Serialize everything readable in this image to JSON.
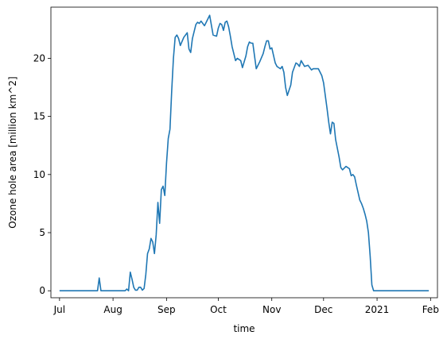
{
  "chart_data": {
    "type": "line",
    "xlabel": "time",
    "ylabel": "Ozone hole area [million km^2]",
    "x_range": [
      "2020-06-26",
      "2021-02-05"
    ],
    "ylim": [
      -0.6,
      24.4
    ],
    "grid": false,
    "color": "#1f77b4",
    "x_ticks": [
      {
        "date": "2020-07-01",
        "label": "Jul"
      },
      {
        "date": "2020-08-01",
        "label": "Aug"
      },
      {
        "date": "2020-09-01",
        "label": "Sep"
      },
      {
        "date": "2020-10-01",
        "label": "Oct"
      },
      {
        "date": "2020-11-01",
        "label": "Nov"
      },
      {
        "date": "2020-12-01",
        "label": "Dec"
      },
      {
        "date": "2021-01-01",
        "label": "2021"
      },
      {
        "date": "2021-02-01",
        "label": "Feb"
      }
    ],
    "y_ticks": [
      0,
      5,
      10,
      15,
      20
    ],
    "series": [
      {
        "x": [
          "2020-07-01",
          "2020-07-10",
          "2020-07-20",
          "2020-07-23",
          "2020-07-24",
          "2020-07-25",
          "2020-08-01",
          "2020-08-08",
          "2020-08-09",
          "2020-08-10",
          "2020-08-11",
          "2020-08-12",
          "2020-08-13",
          "2020-08-14",
          "2020-08-15",
          "2020-08-16",
          "2020-08-17",
          "2020-08-18",
          "2020-08-19",
          "2020-08-20",
          "2020-08-21",
          "2020-08-22",
          "2020-08-23",
          "2020-08-24",
          "2020-08-25",
          "2020-08-26",
          "2020-08-27",
          "2020-08-28",
          "2020-08-29",
          "2020-08-30",
          "2020-08-31",
          "2020-09-01",
          "2020-09-02",
          "2020-09-03",
          "2020-09-04",
          "2020-09-05",
          "2020-09-06",
          "2020-09-07",
          "2020-09-08",
          "2020-09-09",
          "2020-09-11",
          "2020-09-13",
          "2020-09-14",
          "2020-09-15",
          "2020-09-16",
          "2020-09-18",
          "2020-09-19",
          "2020-09-20",
          "2020-09-21",
          "2020-09-23",
          "2020-09-25",
          "2020-09-26",
          "2020-09-28",
          "2020-09-30",
          "2020-10-01",
          "2020-10-02",
          "2020-10-03",
          "2020-10-04",
          "2020-10-05",
          "2020-10-06",
          "2020-10-07",
          "2020-10-08",
          "2020-10-09",
          "2020-10-11",
          "2020-10-12",
          "2020-10-14",
          "2020-10-15",
          "2020-10-17",
          "2020-10-18",
          "2020-10-19",
          "2020-10-20",
          "2020-10-21",
          "2020-10-23",
          "2020-10-25",
          "2020-10-27",
          "2020-10-28",
          "2020-10-29",
          "2020-10-30",
          "2020-10-31",
          "2020-11-01",
          "2020-11-03",
          "2020-11-04",
          "2020-11-05",
          "2020-11-06",
          "2020-11-07",
          "2020-11-08",
          "2020-11-09",
          "2020-11-10",
          "2020-11-12",
          "2020-11-13",
          "2020-11-15",
          "2020-11-16",
          "2020-11-17",
          "2020-11-18",
          "2020-11-20",
          "2020-11-22",
          "2020-11-24",
          "2020-11-25",
          "2020-11-28",
          "2020-11-30",
          "2020-12-01",
          "2020-12-03",
          "2020-12-04",
          "2020-12-05",
          "2020-12-06",
          "2020-12-07",
          "2020-12-08",
          "2020-12-10",
          "2020-12-11",
          "2020-12-12",
          "2020-12-14",
          "2020-12-15",
          "2020-12-16",
          "2020-12-17",
          "2020-12-18",
          "2020-12-19",
          "2020-12-20",
          "2020-12-22",
          "2020-12-23",
          "2020-12-24",
          "2020-12-25",
          "2020-12-26",
          "2020-12-27",
          "2020-12-28",
          "2020-12-29",
          "2020-12-30",
          "2021-01-01",
          "2021-01-15",
          "2021-01-31"
        ],
        "y": [
          0,
          0,
          0,
          0,
          1.1,
          0,
          0,
          0,
          0.15,
          0,
          1.6,
          1.0,
          0.3,
          0.05,
          0.05,
          0.3,
          0.3,
          0.05,
          0.2,
          1.4,
          3.2,
          3.6,
          4.5,
          4.2,
          3.2,
          4.8,
          7.6,
          5.8,
          8.7,
          9.0,
          8.2,
          11.0,
          13.1,
          13.9,
          17.2,
          20.0,
          21.8,
          22.0,
          21.7,
          21.1,
          21.8,
          22.2,
          20.8,
          20.5,
          21.7,
          22.9,
          23.1,
          23.0,
          23.2,
          22.8,
          23.4,
          23.7,
          22.0,
          21.9,
          22.6,
          23.0,
          22.9,
          22.4,
          23.1,
          23.2,
          22.7,
          21.9,
          21.0,
          19.8,
          20.0,
          19.8,
          19.2,
          20.2,
          21.0,
          21.4,
          21.3,
          21.3,
          19.1,
          19.7,
          20.4,
          21.0,
          21.5,
          21.5,
          20.8,
          20.9,
          19.6,
          19.3,
          19.2,
          19.1,
          19.3,
          18.8,
          17.5,
          16.8,
          17.7,
          18.8,
          19.6,
          19.5,
          19.3,
          19.8,
          19.3,
          19.4,
          19.0,
          19.1,
          19.1,
          18.5,
          17.9,
          15.7,
          14.5,
          13.5,
          14.5,
          14.4,
          13.0,
          11.5,
          10.6,
          10.4,
          10.7,
          10.6,
          10.5,
          9.9,
          10.0,
          9.8,
          9.1,
          7.8,
          7.5,
          7.1,
          6.6,
          6.0,
          5.0,
          3.0,
          0.5,
          0,
          0,
          0,
          0
        ]
      }
    ]
  }
}
